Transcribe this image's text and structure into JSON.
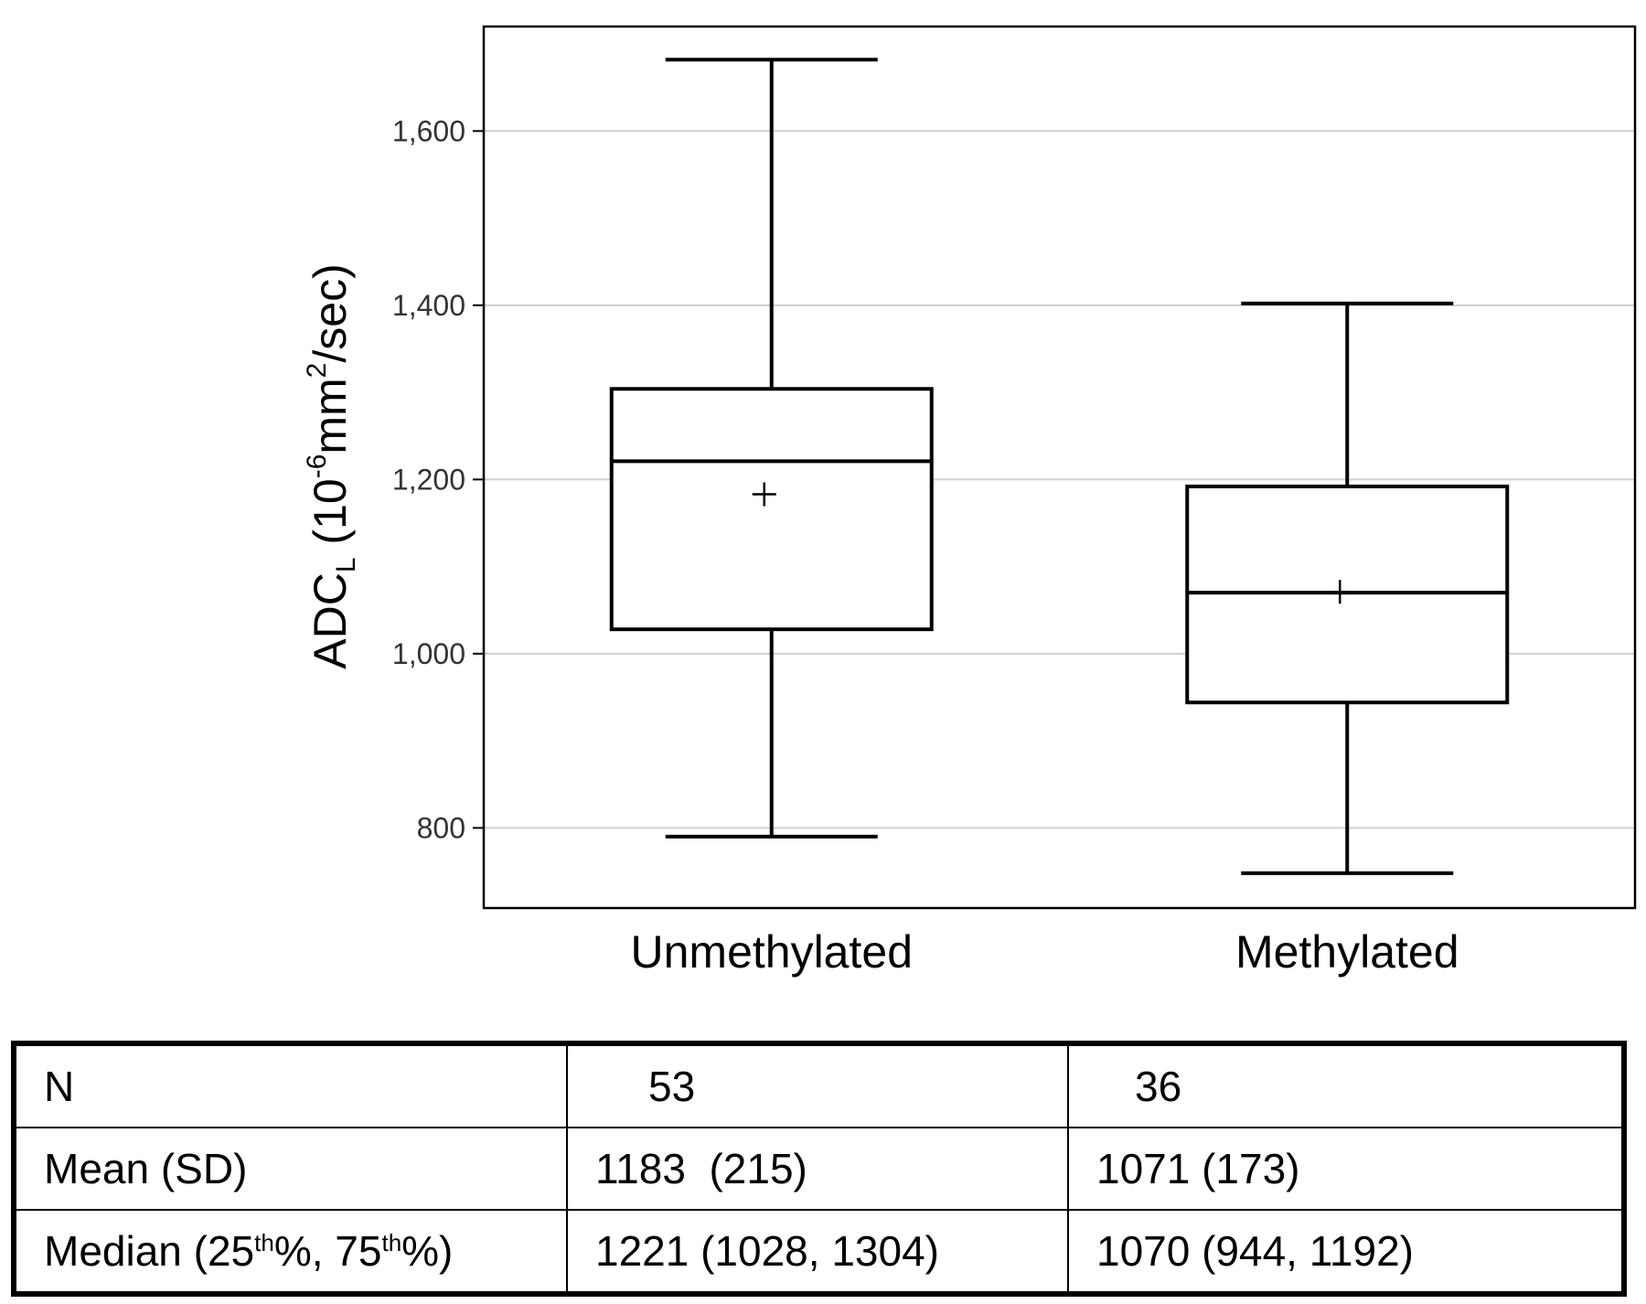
{
  "chart_data": {
    "type": "box",
    "ylabel": {
      "main": "ADC",
      "sub": "L",
      "open": " (10",
      "exp": "-6",
      "unit": "mm",
      "unit_exp": "2",
      "close": "/sec)"
    },
    "ylim": [
      708,
      1720
    ],
    "yticks": [
      800,
      1000,
      1200,
      1400,
      1600
    ],
    "ytick_labels": [
      "800",
      "1,000",
      "1,200",
      "1,400",
      "1,600"
    ],
    "grid": true,
    "categories": [
      "Unmethylated",
      "Methylated"
    ],
    "boxes": [
      {
        "whisker_low": 790,
        "q1": 1028,
        "median": 1221,
        "q3": 1304,
        "whisker_high": 1682,
        "mean": 1183
      },
      {
        "whisker_low": 748,
        "q1": 944,
        "median": 1070,
        "q3": 1192,
        "whisker_high": 1402,
        "mean": 1071
      }
    ]
  },
  "table": {
    "rows": [
      {
        "label": "N",
        "col1": "53",
        "col2": "36"
      },
      {
        "label": "Mean (SD)",
        "col1": "1183  (215)",
        "col2": "1071 (173)"
      },
      {
        "label_a": "Median (25",
        "label_sup1": "th",
        "label_b": "%, 75",
        "label_sup2": "th",
        "label_c": "%)",
        "col1": "1221 (1028, 1304)",
        "col2": "1070 (944, 1192)"
      }
    ]
  }
}
